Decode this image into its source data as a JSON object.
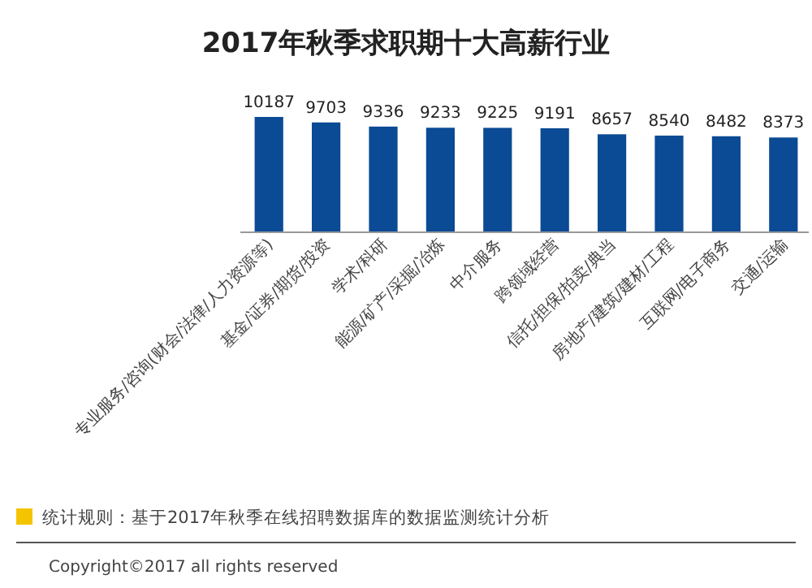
{
  "chart_data": {
    "type": "bar",
    "title": "2017年秋季求职期十大高薪行业",
    "categories": [
      "专业服务/咨询(财会/法律/人力资源等)",
      "基金/证券/期货/投资",
      "学术/科研",
      "能源/矿产/采掘/冶炼",
      "中介服务",
      "跨领域经营",
      "信托/担保/拍卖/典当",
      "房地产/建筑/建材/工程",
      "互联网/电子商务",
      "交通/运输"
    ],
    "values": [
      10187,
      9703,
      9336,
      9233,
      9225,
      9191,
      8657,
      8540,
      8482,
      8373
    ],
    "color": "#0b4a94",
    "data_labels": true,
    "annotations": [
      "统计规则：基于2017年秋季在线招聘数据库的数据监测统计分析",
      "Copyright©2017 all rights reserved"
    ]
  }
}
